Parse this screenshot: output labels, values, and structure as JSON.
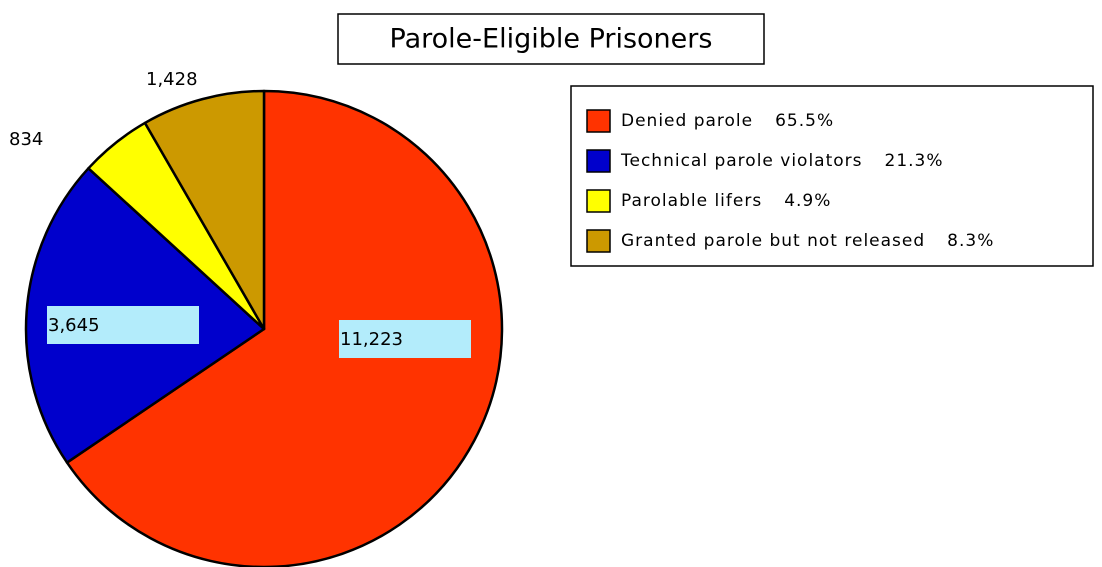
{
  "chart_data": {
    "type": "pie",
    "title": "Parole-Eligible Prisoners",
    "categories": [
      "Denied parole",
      "Technical parole violators",
      "Parolable lifers",
      "Granted parole but not released"
    ],
    "percent_labels": [
      "65.5%",
      "21.3%",
      "4.9%",
      "8.3%"
    ],
    "values": [
      11223,
      3645,
      834,
      1428
    ],
    "value_labels": [
      "11,223",
      "3,645",
      "834",
      "1,428"
    ],
    "colors": [
      "#ff3300",
      "#0000cc",
      "#ffff00",
      "#cc9900"
    ],
    "legend": "right"
  }
}
